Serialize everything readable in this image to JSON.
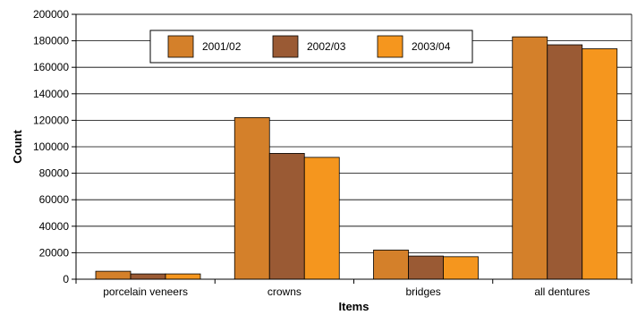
{
  "chart_data": {
    "type": "bar",
    "title": "",
    "xlabel": "Items",
    "ylabel": "Count",
    "categories": [
      "porcelain veneers",
      "crowns",
      "bridges",
      "all dentures"
    ],
    "series": [
      {
        "name": "2001/02",
        "color": "#d4802a",
        "values": [
          6000,
          122000,
          22000,
          183000
        ]
      },
      {
        "name": "2002/03",
        "color": "#9a5a34",
        "values": [
          4000,
          95000,
          17500,
          177000
        ]
      },
      {
        "name": "2003/04",
        "color": "#f5961e",
        "values": [
          4000,
          92000,
          17000,
          174000
        ]
      }
    ],
    "ylim": [
      0,
      200000
    ],
    "yticks": [
      0,
      20000,
      40000,
      60000,
      80000,
      100000,
      120000,
      140000,
      160000,
      180000,
      200000
    ],
    "grid": true,
    "legend_position": "top"
  }
}
